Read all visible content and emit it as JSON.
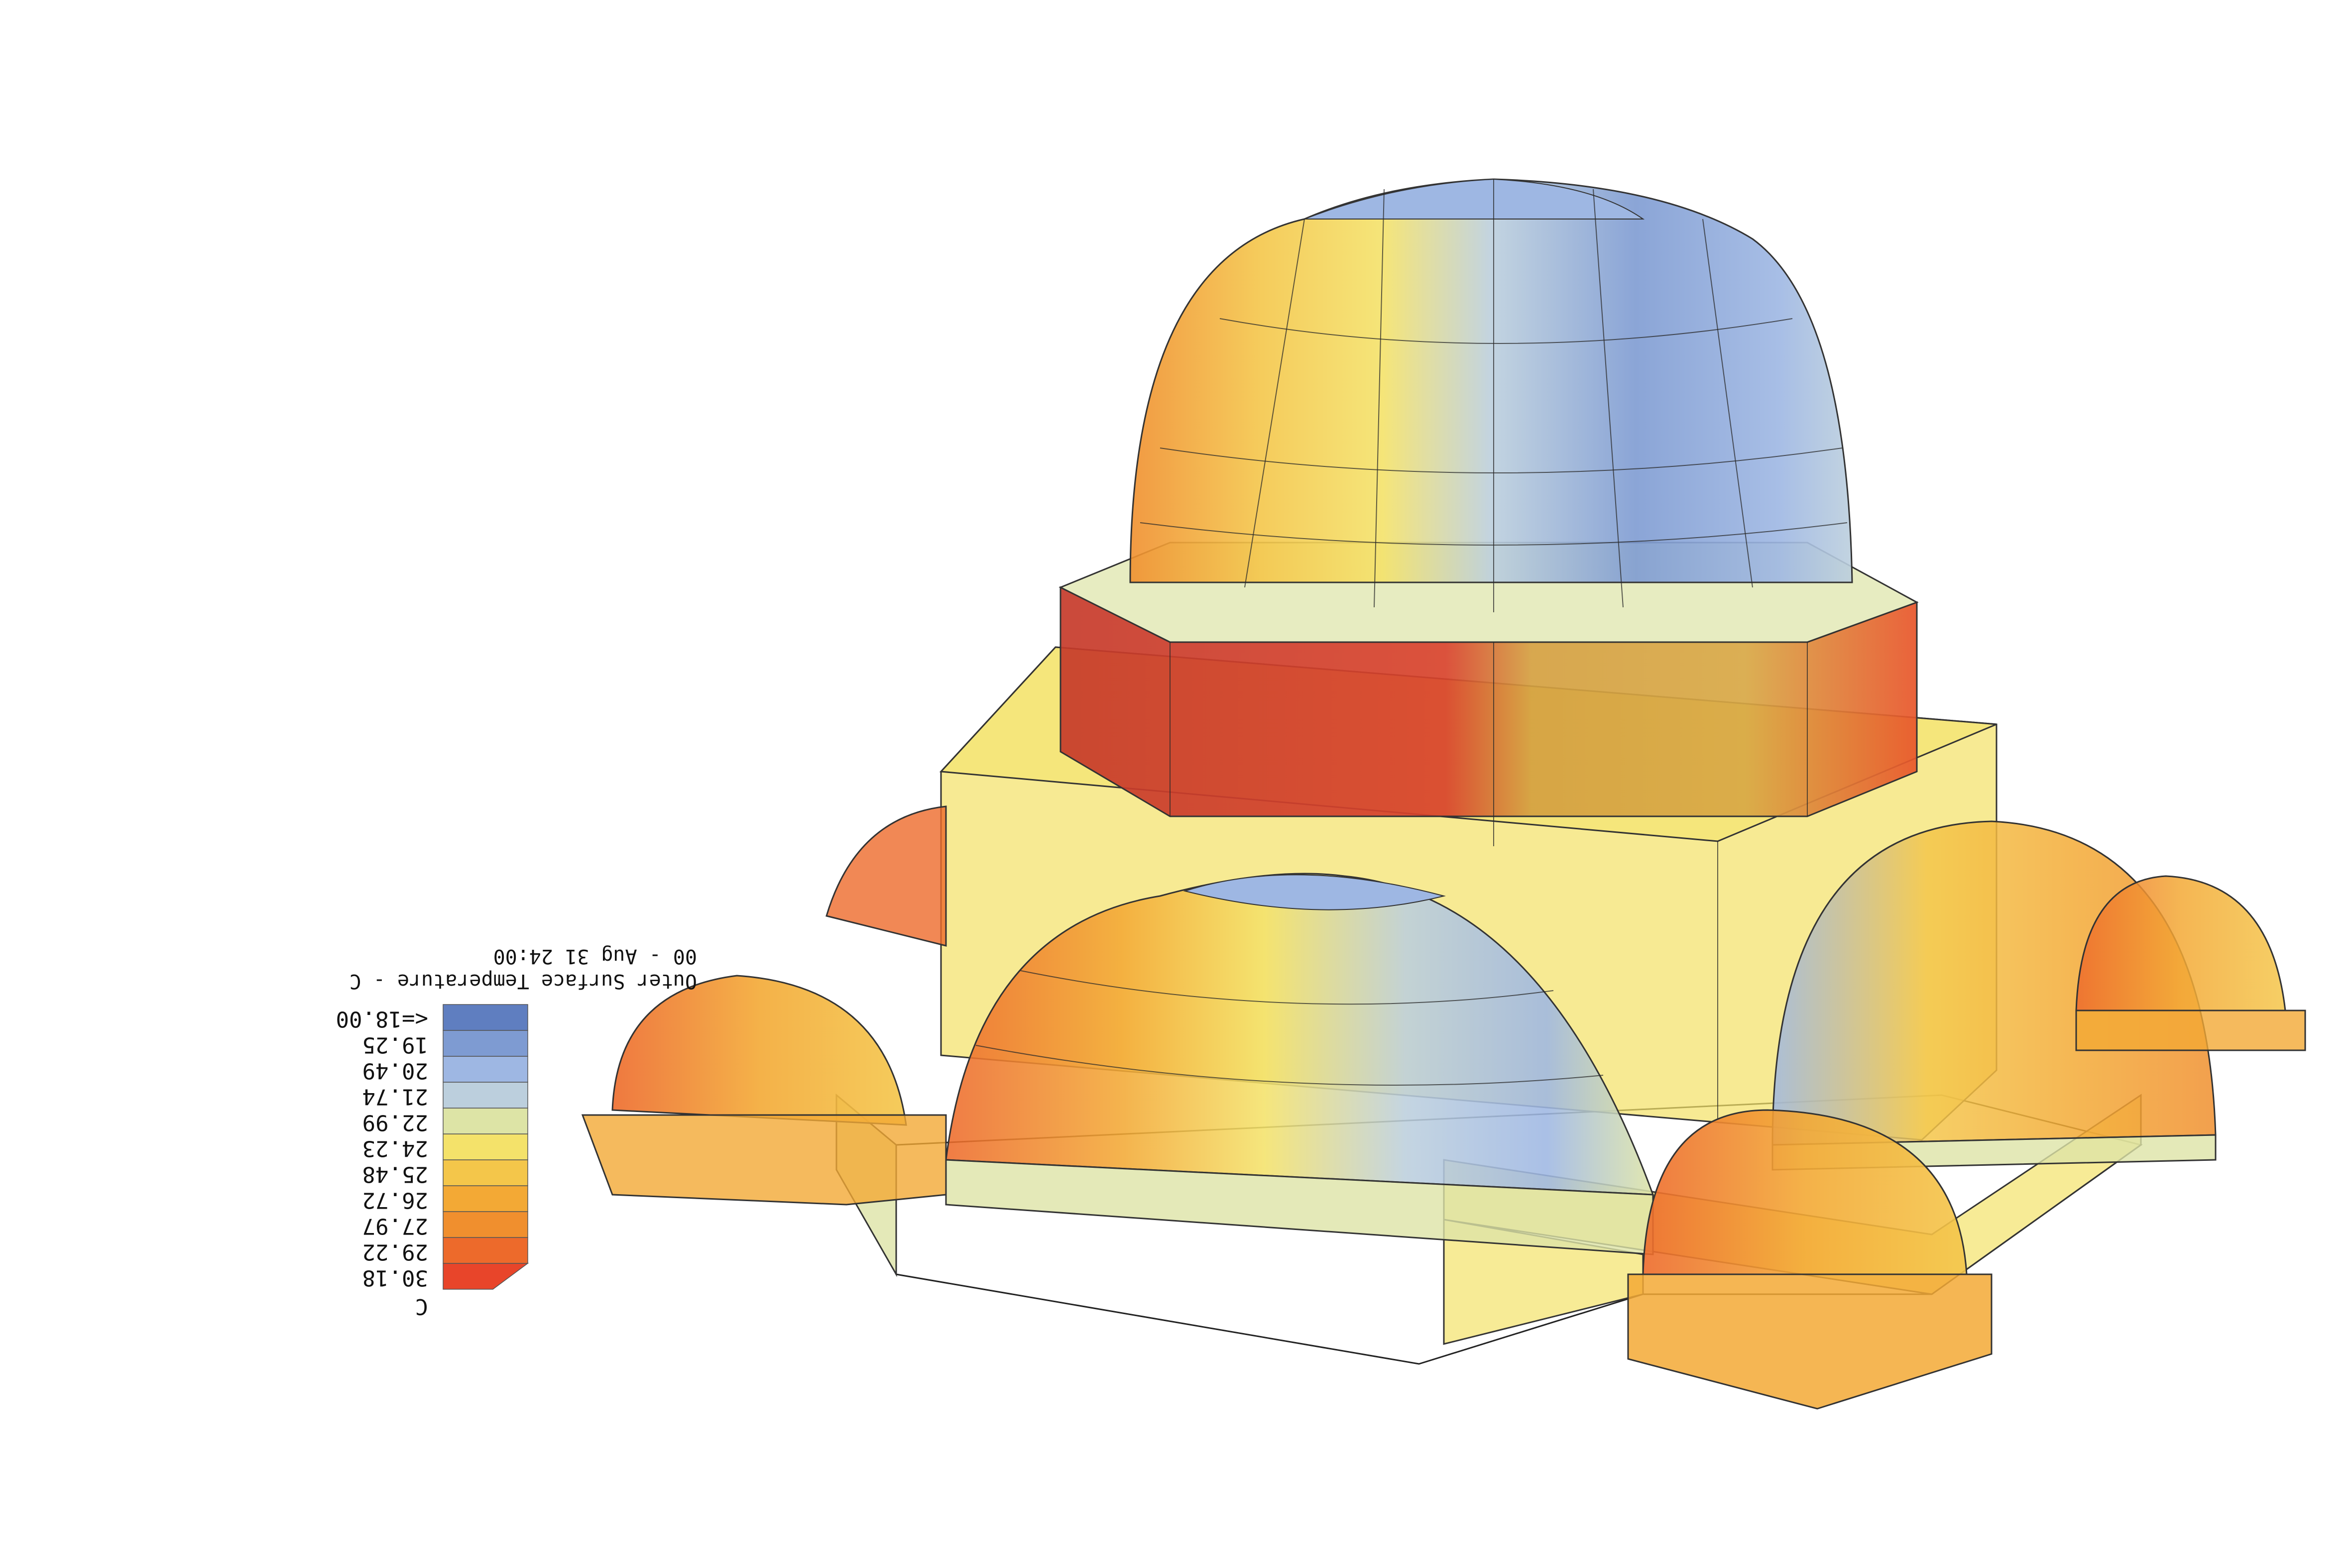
{
  "legend": {
    "title": "Outer Surface Temperature - C",
    "period": "00 - Aug 31 24:00",
    "unit": "C",
    "items": [
      {
        "label": "30.18",
        "color": "#e8452a"
      },
      {
        "label": "29.22",
        "color": "#ed6a2b"
      },
      {
        "label": "27.97",
        "color": "#f08f2e"
      },
      {
        "label": "26.72",
        "color": "#f3a935"
      },
      {
        "label": "25.48",
        "color": "#f4c64a"
      },
      {
        "label": "24.23",
        "color": "#f4e26a"
      },
      {
        "label": "22.99",
        "color": "#dde4a6"
      },
      {
        "label": "21.74",
        "color": "#bccfdd"
      },
      {
        "label": "20.49",
        "color": "#9eb7e3"
      },
      {
        "label": "19.25",
        "color": "#7e9bd2"
      },
      {
        "label": "<=18.00",
        "color": "#5f7ec0"
      }
    ]
  }
}
